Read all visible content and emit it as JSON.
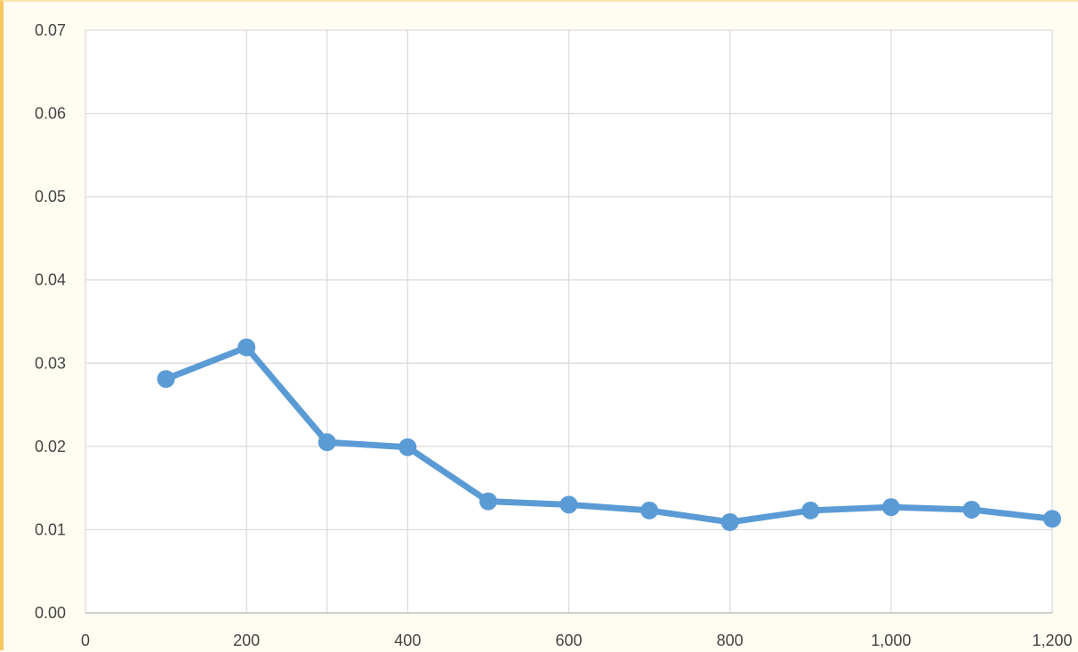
{
  "chart_data": {
    "type": "line",
    "title": "",
    "xlabel": "",
    "ylabel": "",
    "xlim": [
      0,
      1200
    ],
    "ylim": [
      0,
      0.07
    ],
    "x_ticks": [
      0,
      200,
      400,
      600,
      800,
      1000,
      1200
    ],
    "x_tick_labels": [
      "0",
      "200",
      "400",
      "600",
      "800",
      "1,000",
      "1,200"
    ],
    "y_ticks": [
      0,
      0.01,
      0.02,
      0.03,
      0.04,
      0.05,
      0.06,
      0.07
    ],
    "y_tick_labels": [
      "0.00",
      "0.01",
      "0.02",
      "0.03",
      "0.04",
      "0.05",
      "0.06",
      "0.07"
    ],
    "x_grid_values": [
      0,
      200,
      300,
      400,
      600,
      800,
      1000,
      1200
    ],
    "grid": true,
    "legend": "none",
    "series": [
      {
        "x": [
          100,
          200,
          300,
          400,
          500,
          600,
          700,
          800,
          900,
          1000,
          1100,
          1200
        ],
        "y": [
          0.0281,
          0.0319,
          0.0205,
          0.0199,
          0.0134,
          0.013,
          0.0123,
          0.0109,
          0.0123,
          0.0127,
          0.0124,
          0.0113
        ],
        "color": "#5b9bd5"
      }
    ],
    "colors": {
      "grid": "#d9d9d9",
      "axis": "#bfbfbf",
      "text": "#444444",
      "background": "#ffffff"
    }
  }
}
